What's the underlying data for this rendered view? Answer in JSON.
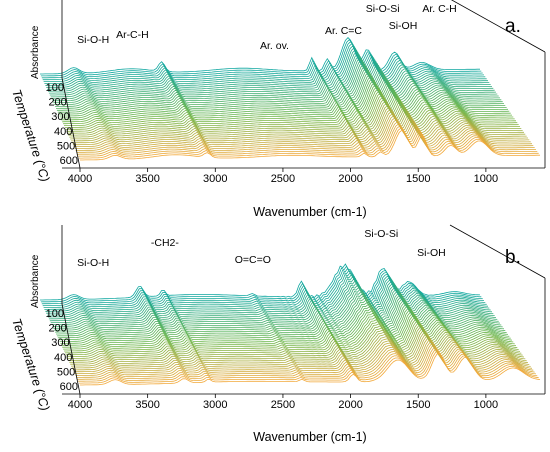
{
  "chart_data": [
    {
      "type": "line",
      "panel_label": "a.",
      "xlabel": "Wavenumber (cm-1)",
      "ylabel": "Absorbance",
      "zlabel": "Temperature (°C)",
      "xlim": [
        4000,
        600
      ],
      "x_ticks": [
        "4000",
        "3500",
        "3000",
        "2500",
        "2000",
        "1500",
        "1000"
      ],
      "z_ticks": [
        "100",
        "200",
        "300",
        "400",
        "500",
        "600"
      ],
      "colors": {
        "low_temp": "#0fa7a0",
        "mid_temp": "#6fb64a",
        "high_temp": "#f2a93b"
      },
      "annotations": [
        {
          "text": "Si-O-H",
          "x": 3740
        },
        {
          "text": "Ar-C-H",
          "x": 3450
        },
        {
          "text": "Ar. ov.",
          "x": 2400
        },
        {
          "text": "Ar. C=C",
          "x": 1890
        },
        {
          "text": "Si-O-Si",
          "x": 1600
        },
        {
          "text": "Si-OH",
          "x": 1450
        },
        {
          "text": "Ar. C-H",
          "x": 1180
        }
      ]
    },
    {
      "type": "line",
      "panel_label": "b.",
      "xlabel": "Wavenumber (cm-1)",
      "ylabel": "Absorbance",
      "zlabel": "Temperature (°C)",
      "xlim": [
        4000,
        600
      ],
      "x_ticks": [
        "4000",
        "3500",
        "3000",
        "2500",
        "2000",
        "1500",
        "1000"
      ],
      "z_ticks": [
        "100",
        "200",
        "300",
        "400",
        "500",
        "600"
      ],
      "colors": {
        "low_temp": "#0fa7a0",
        "mid_temp": "#6fb64a",
        "high_temp": "#f2a93b"
      },
      "annotations": [
        {
          "text": "Si-O-H",
          "x": 3740
        },
        {
          "text": "-CH2-",
          "x": 3210
        },
        {
          "text": "O=C=O",
          "x": 2560
        },
        {
          "text": "Si-O-Si",
          "x": 1610
        },
        {
          "text": "Si-OH",
          "x": 1240
        }
      ]
    }
  ]
}
